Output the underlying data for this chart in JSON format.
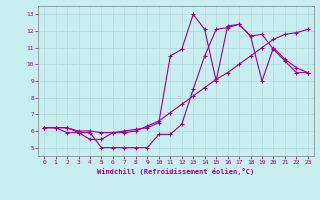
{
  "xlabel": "Windchill (Refroidissement éolien,°C)",
  "bg_color": "#c8eef0",
  "line_color": "#990099",
  "grid_color": "#b0d8dc",
  "xlim": [
    -0.5,
    23.5
  ],
  "ylim": [
    4.5,
    13.5
  ],
  "xticks": [
    0,
    1,
    2,
    3,
    4,
    5,
    6,
    7,
    8,
    9,
    10,
    11,
    12,
    13,
    14,
    15,
    16,
    17,
    18,
    19,
    20,
    21,
    22,
    23
  ],
  "yticks": [
    5,
    6,
    7,
    8,
    9,
    10,
    11,
    12,
    13
  ],
  "line1_x": [
    0,
    1,
    2,
    3,
    4,
    5,
    6,
    7,
    8,
    9,
    10,
    11,
    12,
    13,
    14,
    15,
    16,
    17,
    18,
    19,
    20,
    21,
    22,
    23
  ],
  "line1_y": [
    6.2,
    6.2,
    6.2,
    5.9,
    5.9,
    5.0,
    5.0,
    5.0,
    5.0,
    5.0,
    5.8,
    5.8,
    6.4,
    8.5,
    10.5,
    12.1,
    12.2,
    12.4,
    11.7,
    11.8,
    10.9,
    10.2,
    9.5,
    9.5
  ],
  "line2_x": [
    0,
    1,
    2,
    3,
    4,
    5,
    6,
    7,
    8,
    9,
    10,
    11,
    12,
    13,
    14,
    15,
    16,
    17,
    18,
    19,
    20,
    21,
    22,
    23
  ],
  "line2_y": [
    6.2,
    6.2,
    6.2,
    6.0,
    6.0,
    5.9,
    5.9,
    5.9,
    6.0,
    6.3,
    6.6,
    7.1,
    7.6,
    8.1,
    8.6,
    9.1,
    9.5,
    10.0,
    10.5,
    11.0,
    11.5,
    11.8,
    11.9,
    12.1
  ],
  "line3_x": [
    0,
    1,
    2,
    3,
    4,
    5,
    6,
    7,
    8,
    9,
    10,
    11,
    12,
    13,
    14,
    15,
    16,
    17,
    18,
    19,
    20,
    21,
    22,
    23
  ],
  "line3_y": [
    6.2,
    6.2,
    5.9,
    5.9,
    5.5,
    5.5,
    5.9,
    6.0,
    6.1,
    6.2,
    6.5,
    10.5,
    10.9,
    13.0,
    12.1,
    9.0,
    12.3,
    12.4,
    11.7,
    9.0,
    11.0,
    10.3,
    9.8,
    9.5
  ]
}
